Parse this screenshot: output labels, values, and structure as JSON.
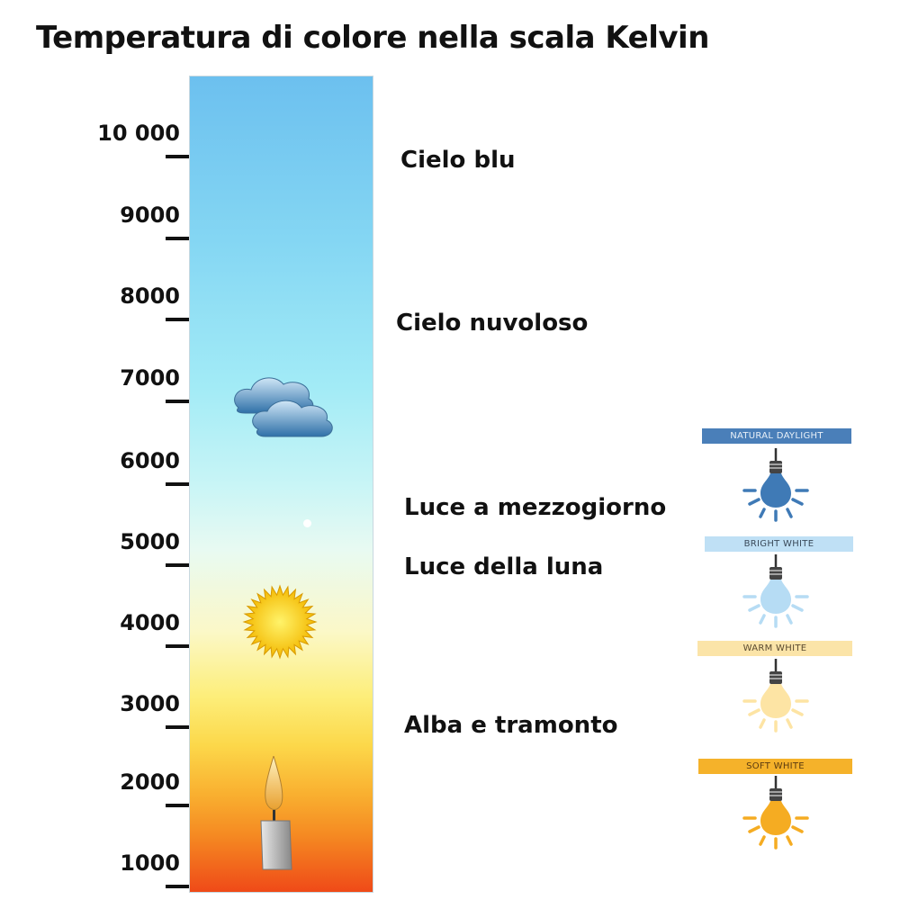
{
  "title": "Temperatura di colore nella scala Kelvin",
  "scale": {
    "unit": "Kelvin",
    "ticks": [
      "10 000",
      "9000",
      "8000",
      "7000",
      "6000",
      "5000",
      "4000",
      "3000",
      "2000",
      "1000"
    ]
  },
  "descriptions": [
    {
      "label": "Cielo blu"
    },
    {
      "label": "Cielo nuvoloso"
    },
    {
      "label": "Luce a mezzogiorno"
    },
    {
      "label": "Luce della luna"
    },
    {
      "label": "Alba e tramonto"
    }
  ],
  "icons": [
    "cloud-icon",
    "sun-icon",
    "candle-icon"
  ],
  "bulbs": [
    {
      "label": "NATURAL DAYLIGHT",
      "banner_color": "#4a7fb9",
      "text_color": "#e8f0f8",
      "bulb_color": "#3f7ab6"
    },
    {
      "label": "BRIGHT WHITE",
      "banner_color": "#bfe0f5",
      "text_color": "#3a4a5a",
      "bulb_color": "#b6dcf4"
    },
    {
      "label": "WARM WHITE",
      "banner_color": "#fbe4a8",
      "text_color": "#5a4a30",
      "bulb_color": "#fde4a4"
    },
    {
      "label": "SOFT WHITE",
      "banner_color": "#f5b22a",
      "text_color": "#5a3a10",
      "bulb_color": "#f5ac22"
    }
  ]
}
